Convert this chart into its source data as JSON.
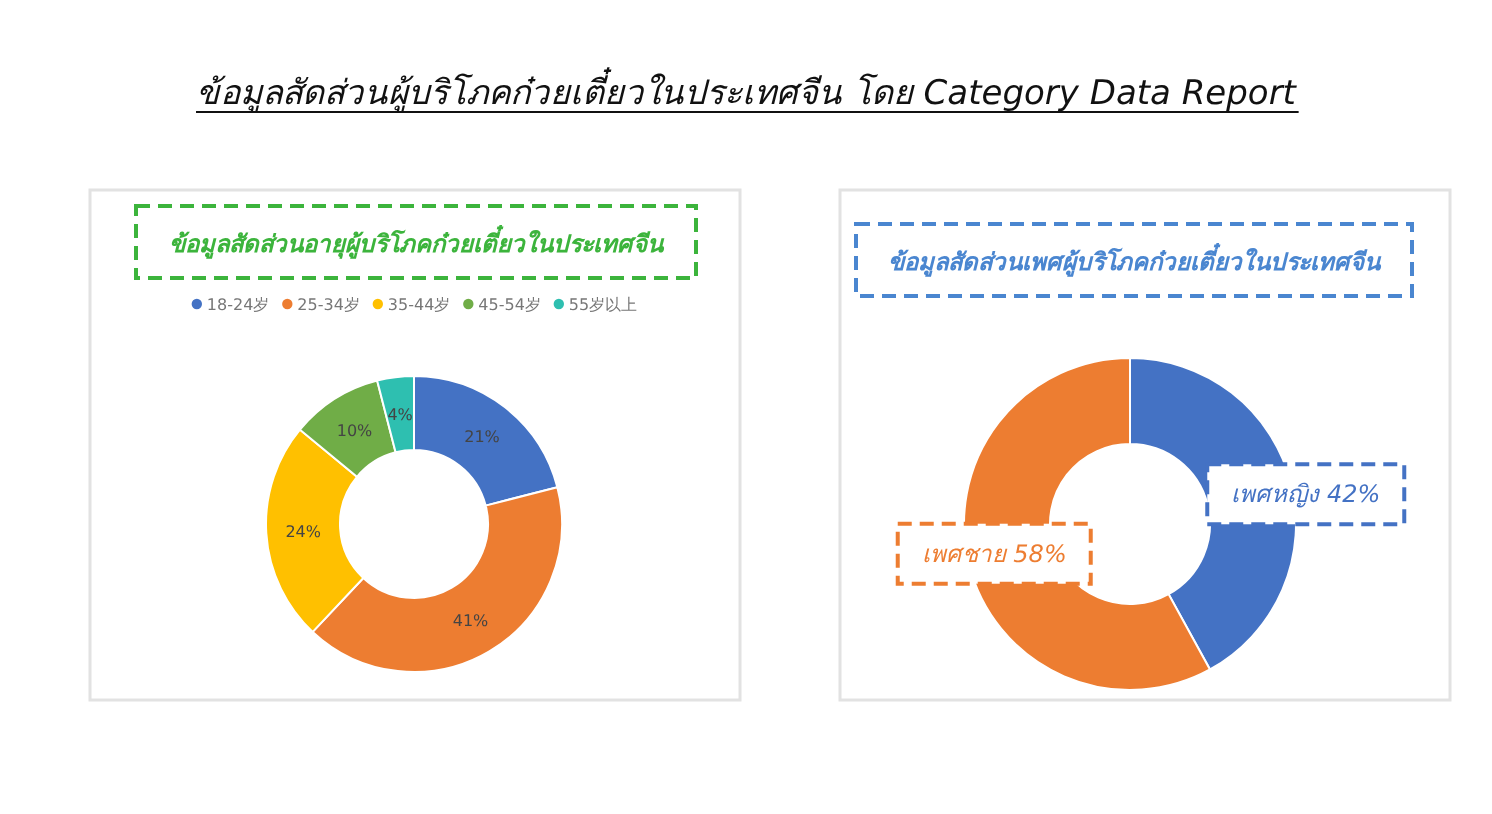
{
  "chart_data": [
    {
      "type": "other",
      "title": "ข้อมูลสัดส่วนผู้บริโภคก๋วยเตี๋ยวในประเทศจีน โดย Category Data Report"
    },
    {
      "type": "donut",
      "title": "ข้อมูลสัดส่วนอายุผู้บริโภคก๋วยเตี๋ยวในประเทศจีน",
      "categories": [
        "18-24岁",
        "25-34岁",
        "35-44岁",
        "45-54岁",
        "55岁以上"
      ],
      "values": [
        21,
        41,
        24,
        10,
        4
      ],
      "colors": [
        "#4472c4",
        "#ed7d31",
        "#ffc000",
        "#70ad47",
        "#2ebfb0"
      ],
      "value_labels": [
        "21%",
        "41%",
        "24%",
        "10%",
        "4%"
      ],
      "legend": "top"
    },
    {
      "type": "donut",
      "title": "ข้อมูลสัดส่วนเพศผู้บริโภคก๋วยเตี๋ยวในประเทศจีน",
      "categories": [
        null,
        null
      ],
      "values": [
        42,
        58
      ],
      "colors": [
        "#4472c4",
        "#ed7d31"
      ],
      "value_labels": [
        "เพศหญิง 42%",
        "เพศชาย 58%"
      ]
    }
  ]
}
